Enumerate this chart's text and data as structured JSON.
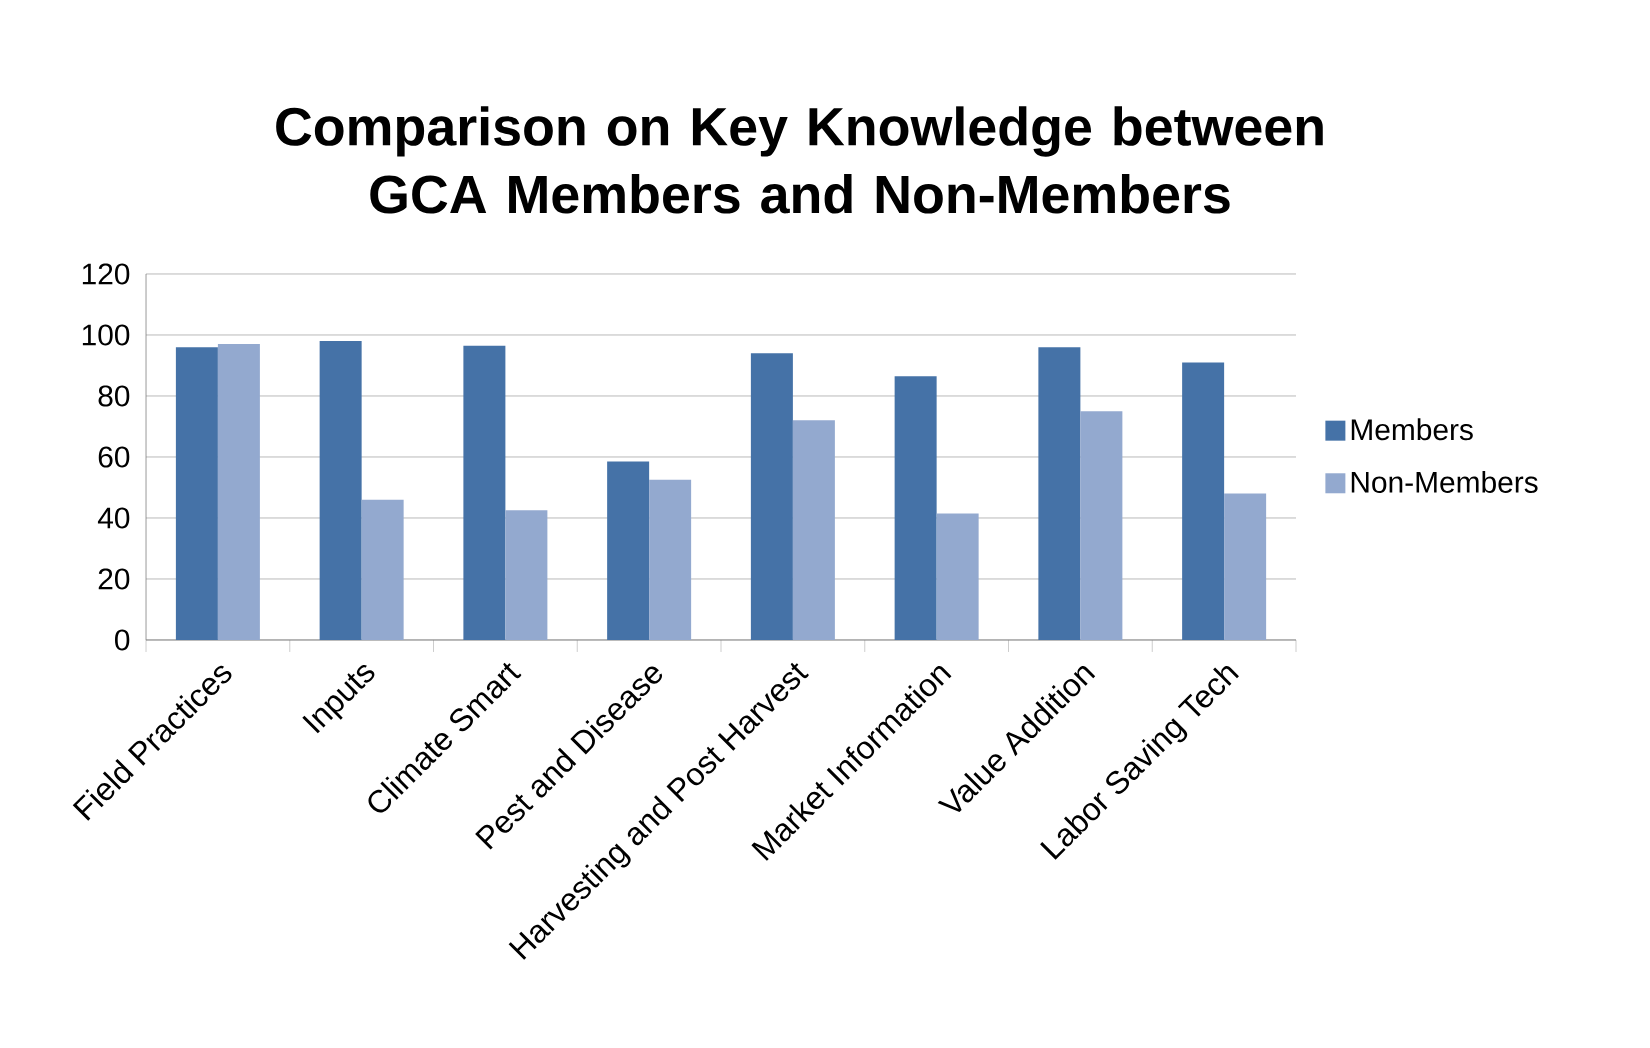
{
  "chart_data": {
    "type": "bar",
    "title": "Comparison on Key Knowledge between GCA Members and Non-Members",
    "categories": [
      "Field Practices",
      "Inputs",
      "Climate Smart",
      "Pest and Disease",
      "Harvesting and Post Harvest",
      "Market Information",
      "Value Addition",
      "Labor Saving Tech"
    ],
    "series": [
      {
        "name": "Members",
        "color": "#4572a7",
        "values": [
          96,
          98,
          96.5,
          58.5,
          94,
          86.5,
          96,
          91
        ]
      },
      {
        "name": "Non-Members",
        "color": "#93a9cf",
        "values": [
          97,
          46,
          42.5,
          52.5,
          72,
          41.5,
          75,
          48
        ]
      }
    ],
    "ylim": [
      0,
      120
    ],
    "yticks": [
      0,
      20,
      40,
      60,
      80,
      100,
      120
    ],
    "grid": "y",
    "legend": "right"
  }
}
